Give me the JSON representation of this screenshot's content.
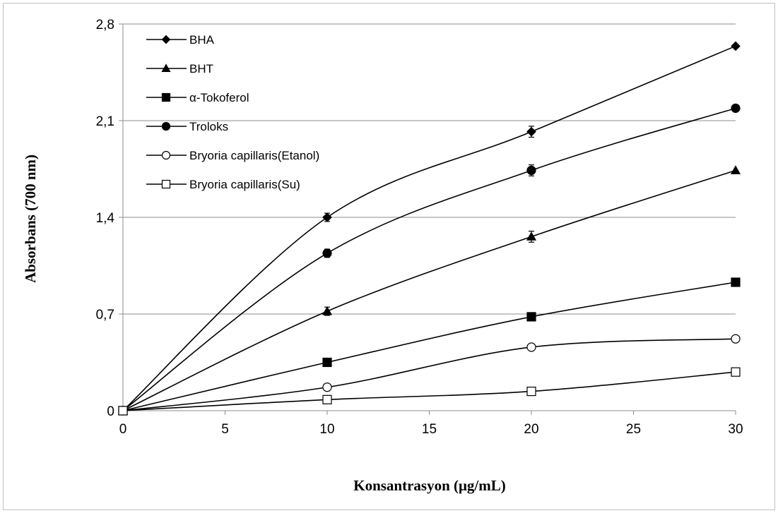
{
  "chart_data": {
    "type": "line",
    "xlabel": "Konsantrasyon (μg/mL)",
    "ylabel": "Absorbans (700 nm)",
    "xlim": [
      0,
      30
    ],
    "ylim": [
      0,
      2.8
    ],
    "x_ticks": [
      "0",
      "5",
      "10",
      "15",
      "20",
      "25",
      "30"
    ],
    "y_ticks": [
      "0",
      "0,7",
      "1,4",
      "2,1",
      "2,8"
    ],
    "grid": "horizontal",
    "legend_position": "top-left",
    "x": [
      0,
      10,
      20,
      30
    ],
    "series": [
      {
        "name": "BHA",
        "marker": "filled-diamond",
        "values": [
          0,
          1.4,
          2.02,
          2.64
        ],
        "errors": [
          0,
          0.03,
          0.04,
          0
        ]
      },
      {
        "name": "BHT",
        "marker": "filled-triangle",
        "values": [
          0,
          0.72,
          1.26,
          1.74
        ],
        "errors": [
          0,
          0.03,
          0.04,
          0
        ]
      },
      {
        "name": "α-Tokoferol",
        "marker": "filled-square",
        "values": [
          0,
          0.35,
          0.68,
          0.93
        ],
        "errors": [
          0,
          0,
          0,
          0
        ]
      },
      {
        "name": "Troloks",
        "marker": "filled-circle",
        "values": [
          0,
          1.14,
          1.74,
          2.19
        ],
        "errors": [
          0,
          0.03,
          0.04,
          0
        ]
      },
      {
        "name": "Bryoria capillaris(Etanol)",
        "marker": "open-circle",
        "values": [
          0,
          0.17,
          0.46,
          0.52
        ],
        "errors": [
          0,
          0,
          0,
          0
        ]
      },
      {
        "name": "Bryoria capillaris(Su)",
        "marker": "open-square",
        "values": [
          0,
          0.08,
          0.14,
          0.28
        ],
        "errors": [
          0,
          0,
          0,
          0
        ]
      }
    ]
  }
}
